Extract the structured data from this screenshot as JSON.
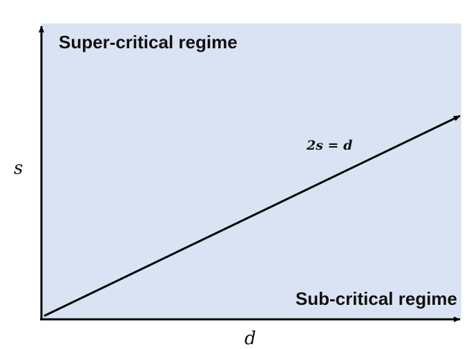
{
  "diagram": {
    "regions": {
      "upper_label": "Super-critical regime",
      "lower_label": "Sub-critical regime"
    },
    "axes": {
      "x_label": "d",
      "y_label": "s"
    },
    "boundary": {
      "label": "2s = d"
    },
    "colors": {
      "region_fill": "#dae3f3",
      "axis": "#000000",
      "line": "#000000"
    }
  }
}
